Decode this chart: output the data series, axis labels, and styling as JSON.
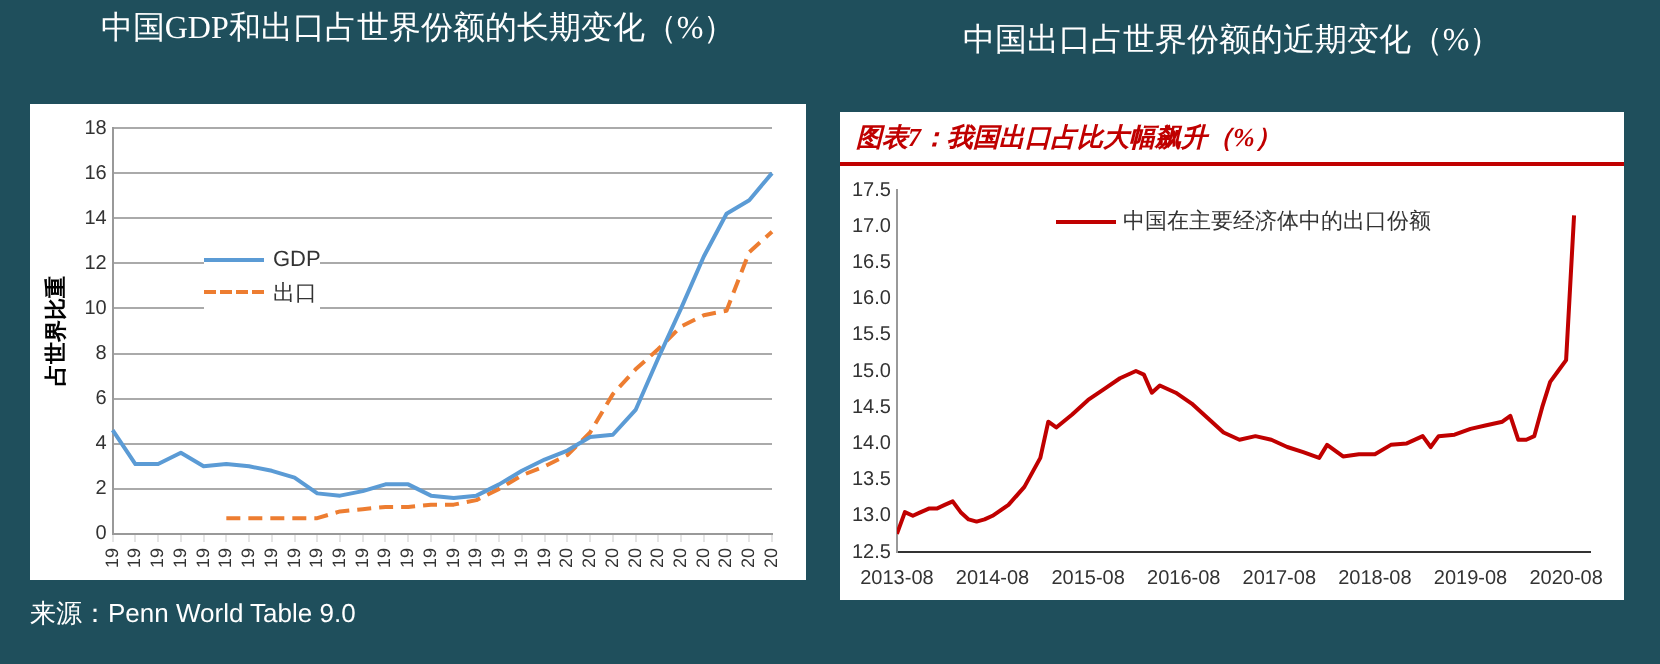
{
  "chart_data": [
    {
      "type": "line",
      "title": "中国GDP和出口占世界份额的长期变化（%）",
      "ylabel": "占世界比重",
      "categories": [
        "19",
        "19",
        "19",
        "19",
        "19",
        "19",
        "19",
        "19",
        "19",
        "19",
        "19",
        "19",
        "19",
        "19",
        "19",
        "19",
        "19",
        "19",
        "19",
        "19",
        "20",
        "20",
        "20",
        "20",
        "20",
        "20",
        "20",
        "20",
        "20",
        "20"
      ],
      "series": [
        {
          "name": "GDP",
          "color": "#5b9bd5",
          "values": [
            4.6,
            3.1,
            3.1,
            3.6,
            3.0,
            3.1,
            3.0,
            2.8,
            2.5,
            1.8,
            1.7,
            1.9,
            2.2,
            2.2,
            1.7,
            1.6,
            1.7,
            2.2,
            2.8,
            3.3,
            3.7,
            4.3,
            4.4,
            5.5,
            7.8,
            10.0,
            12.3,
            14.2,
            14.8,
            16.0
          ]
        },
        {
          "name": "出口",
          "color": "#ed7d31",
          "line_style": "dashed",
          "values": [
            null,
            null,
            null,
            null,
            null,
            0.7,
            0.7,
            0.7,
            0.7,
            0.7,
            1.0,
            1.1,
            1.2,
            1.2,
            1.3,
            1.3,
            1.5,
            2.0,
            2.6,
            3.0,
            3.5,
            4.5,
            6.2,
            7.3,
            8.2,
            9.2,
            9.7,
            9.9,
            12.5,
            13.4
          ]
        }
      ],
      "ylim": [
        0,
        18
      ],
      "yticks": [
        0,
        2,
        4,
        6,
        8,
        10,
        12,
        14,
        16,
        18
      ],
      "grid": "y",
      "legend": "top left",
      "marker": "none",
      "annotations": [
        "来源：Penn World Table 9.0"
      ]
    },
    {
      "type": "line",
      "title": "中国出口占世界份额的近期变化（%）",
      "subtitle": "图表7：我国出口占比大幅飙升（%）",
      "x": [
        "2013-08",
        "2013-09",
        "2013-10",
        "2013-11",
        "2013-12",
        "2014-01",
        "2014-02",
        "2014-03",
        "2014-04",
        "2014-05",
        "2014-06",
        "2014-07",
        "2014-08",
        "2014-10",
        "2014-12",
        "2015-02",
        "2015-03",
        "2015-04",
        "2015-06",
        "2015-08",
        "2015-10",
        "2015-12",
        "2016-02",
        "2016-03",
        "2016-04",
        "2016-05",
        "2016-07",
        "2016-09",
        "2016-11",
        "2017-01",
        "2017-03",
        "2017-05",
        "2017-07",
        "2017-09",
        "2017-11",
        "2018-01",
        "2018-02",
        "2018-04",
        "2018-06",
        "2018-08",
        "2018-10",
        "2018-12",
        "2019-02",
        "2019-03",
        "2019-04",
        "2019-06",
        "2019-08",
        "2019-10",
        "2019-12",
        "2020-01",
        "2020-02",
        "2020-03",
        "2020-04",
        "2020-05",
        "2020-06",
        "2020-07",
        "2020-08",
        "2020-09"
      ],
      "series": [
        {
          "name": "中国在主要经济体中的出口份额",
          "color": "#c00000",
          "values": [
            12.75,
            13.05,
            13.0,
            13.05,
            13.1,
            13.1,
            13.15,
            13.2,
            13.05,
            12.95,
            12.92,
            12.95,
            13.0,
            13.15,
            13.4,
            13.8,
            14.3,
            14.22,
            14.4,
            14.6,
            14.75,
            14.9,
            15.0,
            14.95,
            14.7,
            14.8,
            14.7,
            14.55,
            14.35,
            14.15,
            14.05,
            14.1,
            14.05,
            13.95,
            13.88,
            13.8,
            13.98,
            13.82,
            13.85,
            13.85,
            13.98,
            14.0,
            14.1,
            13.95,
            14.1,
            14.12,
            14.2,
            14.25,
            14.3,
            14.38,
            14.05,
            14.05,
            14.1,
            14.5,
            14.85,
            15.0,
            15.15,
            17.15
          ]
        }
      ],
      "xlim": [
        "2013-08",
        "2020-11"
      ],
      "xticks": [
        "2013-08",
        "2014-08",
        "2015-08",
        "2016-08",
        "2017-08",
        "2018-08",
        "2019-08",
        "2020-08"
      ],
      "ylim": [
        12.5,
        17.5
      ],
      "yticks": [
        12.5,
        {
          "value": 13,
          "label": "13.0"
        },
        13.5,
        {
          "value": 14,
          "label": "14.0"
        },
        14.5,
        {
          "value": 15,
          "label": "15.0"
        },
        15.5,
        {
          "value": 16,
          "label": "16.0"
        },
        16.5,
        {
          "value": 17,
          "label": "17.0"
        },
        17.5
      ],
      "legend": "top",
      "marker": "none"
    }
  ]
}
